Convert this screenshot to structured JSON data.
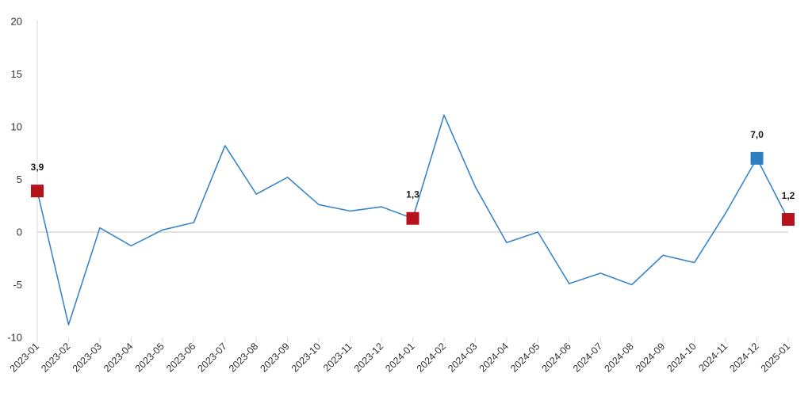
{
  "chart_data": {
    "type": "line",
    "title": "",
    "xlabel": "",
    "ylabel": "",
    "ylim": [
      -10,
      20
    ],
    "yticks": [
      -10,
      -5,
      0,
      5,
      10,
      15,
      20
    ],
    "grid": false,
    "legend": "none",
    "categories": [
      "2023-01",
      "2023-02",
      "2023-03",
      "2023-04",
      "2023-05",
      "2023-06",
      "2023-07",
      "2023-08",
      "2023-09",
      "2023-10",
      "2023-11",
      "2023-12",
      "2024-01",
      "2024-02",
      "2024-03",
      "2024-04",
      "2024-05",
      "2024-06",
      "2024-07",
      "2024-08",
      "2024-09",
      "2024-10",
      "2024-11",
      "2024-12",
      "2025-01"
    ],
    "series": [
      {
        "values": [
          3.9,
          -8.8,
          0.4,
          -1.3,
          0.2,
          0.9,
          8.2,
          3.6,
          5.2,
          2.6,
          2.0,
          2.4,
          1.3,
          11.1,
          4.3,
          -1.0,
          0.0,
          -4.9,
          -3.9,
          -5.0,
          -2.2,
          -2.9,
          1.8,
          7.0,
          1.2
        ],
        "color": "#3a86c8"
      }
    ],
    "highlighted_points": [
      {
        "category": "2023-01",
        "value": 3.9,
        "label": "3,9",
        "color": "#b5121b"
      },
      {
        "category": "2024-01",
        "value": 1.3,
        "label": "1,3",
        "color": "#b5121b"
      },
      {
        "category": "2024-12",
        "value": 7.0,
        "label": "7,0",
        "color": "#2e7fc1"
      },
      {
        "category": "2025-01",
        "value": 1.2,
        "label": "1,2",
        "color": "#b5121b"
      }
    ],
    "zero_line_color": "#d9d9d9",
    "axis_color": "#d9d9d9"
  }
}
